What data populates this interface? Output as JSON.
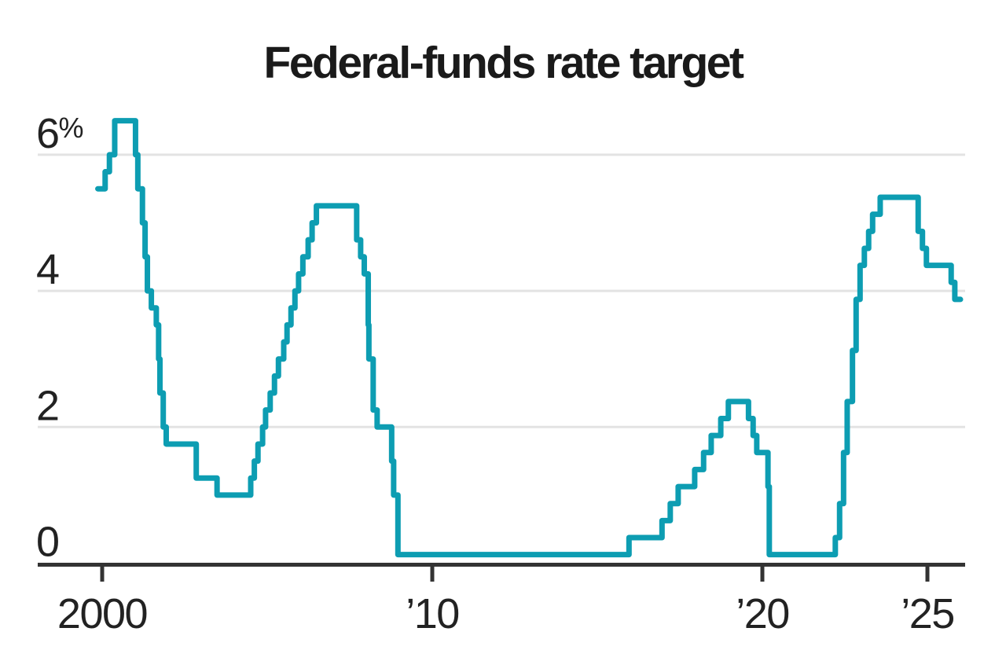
{
  "chart_data": {
    "type": "line",
    "step": true,
    "title": "Federal-funds rate target",
    "xlabel": "",
    "ylabel": "",
    "unit": "%",
    "x_range": [
      1999.87,
      2026.0
    ],
    "ylim": [
      0,
      6.5
    ],
    "grid": "horizontal",
    "legend_position": "none",
    "yticks": [
      {
        "value": 0,
        "label": "0"
      },
      {
        "value": 2,
        "label": "2"
      },
      {
        "value": 4,
        "label": "4"
      },
      {
        "value": 6,
        "label": "6%"
      }
    ],
    "xticks": [
      {
        "value": 2000,
        "label": "2000"
      },
      {
        "value": 2010,
        "label": "’10"
      },
      {
        "value": 2020,
        "label": "’20"
      },
      {
        "value": 2025,
        "label": "’25"
      }
    ],
    "series": [
      {
        "name": "Federal-funds rate target",
        "color": "#0D9DB2",
        "points": [
          [
            1999.87,
            5.5
          ],
          [
            2000.09,
            5.75
          ],
          [
            2000.22,
            6.0
          ],
          [
            2000.38,
            6.5
          ],
          [
            2001.01,
            6.0
          ],
          [
            2001.08,
            5.5
          ],
          [
            2001.22,
            5.0
          ],
          [
            2001.3,
            4.5
          ],
          [
            2001.37,
            4.0
          ],
          [
            2001.49,
            3.75
          ],
          [
            2001.64,
            3.5
          ],
          [
            2001.71,
            3.0
          ],
          [
            2001.75,
            2.5
          ],
          [
            2001.85,
            2.0
          ],
          [
            2001.94,
            1.75
          ],
          [
            2002.85,
            1.25
          ],
          [
            2003.48,
            1.0
          ],
          [
            2004.5,
            1.25
          ],
          [
            2004.61,
            1.5
          ],
          [
            2004.72,
            1.75
          ],
          [
            2004.86,
            2.0
          ],
          [
            2004.95,
            2.25
          ],
          [
            2005.09,
            2.5
          ],
          [
            2005.22,
            2.75
          ],
          [
            2005.34,
            3.0
          ],
          [
            2005.5,
            3.25
          ],
          [
            2005.6,
            3.5
          ],
          [
            2005.72,
            3.75
          ],
          [
            2005.84,
            4.0
          ],
          [
            2005.95,
            4.25
          ],
          [
            2006.08,
            4.5
          ],
          [
            2006.24,
            4.75
          ],
          [
            2006.36,
            5.0
          ],
          [
            2006.49,
            5.25
          ],
          [
            2007.71,
            4.75
          ],
          [
            2007.83,
            4.5
          ],
          [
            2007.94,
            4.25
          ],
          [
            2008.06,
            3.5
          ],
          [
            2008.08,
            3.0
          ],
          [
            2008.21,
            2.25
          ],
          [
            2008.33,
            2.0
          ],
          [
            2008.77,
            1.5
          ],
          [
            2008.83,
            1.0
          ],
          [
            2008.96,
            0.125
          ],
          [
            2015.96,
            0.375
          ],
          [
            2016.96,
            0.625
          ],
          [
            2017.21,
            0.875
          ],
          [
            2017.45,
            1.125
          ],
          [
            2017.95,
            1.375
          ],
          [
            2018.22,
            1.625
          ],
          [
            2018.45,
            1.875
          ],
          [
            2018.74,
            2.125
          ],
          [
            2018.97,
            2.375
          ],
          [
            2019.58,
            2.125
          ],
          [
            2019.72,
            1.875
          ],
          [
            2019.83,
            1.625
          ],
          [
            2020.17,
            1.125
          ],
          [
            2020.21,
            0.125
          ],
          [
            2022.21,
            0.375
          ],
          [
            2022.34,
            0.875
          ],
          [
            2022.46,
            1.625
          ],
          [
            2022.57,
            2.375
          ],
          [
            2022.73,
            3.125
          ],
          [
            2022.84,
            3.875
          ],
          [
            2022.96,
            4.375
          ],
          [
            2023.09,
            4.625
          ],
          [
            2023.22,
            4.875
          ],
          [
            2023.34,
            5.125
          ],
          [
            2023.57,
            5.375
          ],
          [
            2024.72,
            4.875
          ],
          [
            2024.85,
            4.625
          ],
          [
            2024.97,
            4.375
          ],
          [
            2025.72,
            4.125
          ],
          [
            2025.83,
            3.875
          ]
        ]
      }
    ]
  },
  "colors": {
    "line": "#0D9DB2",
    "grid": "#E3E3E3",
    "axis": "#333333",
    "tick_label": "#222222",
    "title": "#1A1A1A"
  }
}
